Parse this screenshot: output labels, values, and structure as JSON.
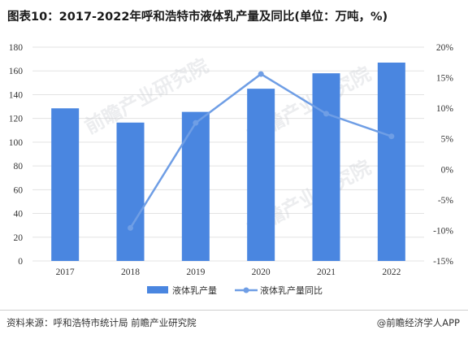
{
  "title": "图表10：2017-2022年呼和浩特市液体乳产量及同比(单位：万吨，%)",
  "watermark": "前瞻产业研究院",
  "footer": {
    "source": "资料来源：呼和浩特市统计局 前瞻产业研究院",
    "brand": "@前瞻经济学人APP"
  },
  "colors": {
    "bar": "#4a86e0",
    "line": "#6f9ee5",
    "grid": "#e3e3e3"
  },
  "chart_data": {
    "type": "bar+line",
    "categories": [
      "2017",
      "2018",
      "2019",
      "2020",
      "2021",
      "2022"
    ],
    "series": [
      {
        "name": "液体乳产量",
        "type": "bar",
        "axis": "left",
        "values": [
          128.5,
          116.5,
          125.5,
          145,
          158,
          167
        ]
      },
      {
        "name": "液体乳产量同比",
        "type": "line",
        "axis": "right",
        "values": [
          null,
          -9.6,
          7.6,
          15.6,
          9.1,
          5.4
        ]
      }
    ],
    "y_left": {
      "lim": [
        0,
        180
      ],
      "ticks": [
        0,
        20,
        40,
        60,
        80,
        100,
        120,
        140,
        160,
        180
      ]
    },
    "y_right": {
      "lim": [
        -15,
        20
      ],
      "ticks": [
        "-15%",
        "-10%",
        "-5%",
        "0%",
        "5%",
        "10%",
        "15%",
        "20%"
      ]
    },
    "grid": true,
    "legend": "bottom"
  }
}
